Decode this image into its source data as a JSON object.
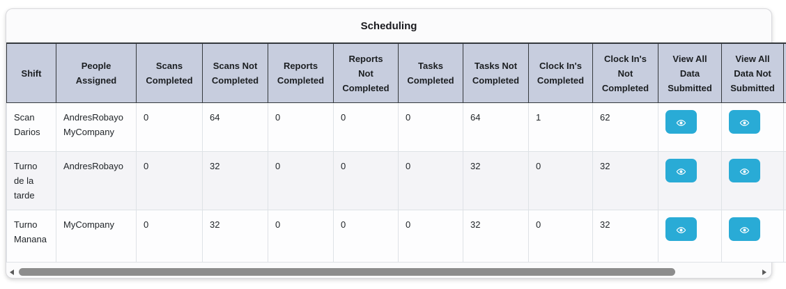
{
  "card": {
    "title": "Scheduling"
  },
  "table": {
    "columns": [
      {
        "key": "shift",
        "label": "Shift"
      },
      {
        "key": "people",
        "label": "People\nAssigned"
      },
      {
        "key": "scans_completed",
        "label": "Scans\nCompleted"
      },
      {
        "key": "scans_not_completed",
        "label": "Scans Not\nCompleted",
        "style": "danger"
      },
      {
        "key": "reports_completed",
        "label": "Reports\nCompleted"
      },
      {
        "key": "reports_not_completed",
        "label": "Reports\nNot\nCompleted",
        "style": "danger"
      },
      {
        "key": "tasks_completed",
        "label": "Tasks\nCompleted"
      },
      {
        "key": "tasks_not_completed",
        "label": "Tasks Not\nCompleted",
        "style": "danger"
      },
      {
        "key": "clockins_completed",
        "label": "Clock In's\nCompleted"
      },
      {
        "key": "clockins_not_completed",
        "label": "Clock In's\nNot\nCompleted",
        "style": "danger"
      },
      {
        "key": "view_all_submitted",
        "label": "View All\nData\nSubmitted",
        "type": "action",
        "icon": "eye-icon"
      },
      {
        "key": "view_all_not_submitted",
        "label": "View All\nData Not\nSubmitted",
        "type": "action",
        "icon": "eye-icon"
      }
    ],
    "rows": [
      {
        "shift": "Scan Darios",
        "people": [
          "AndresRobayo",
          "MyCompany"
        ],
        "scans_completed": "0",
        "scans_not_completed": "64",
        "reports_completed": "0",
        "reports_not_completed": "0",
        "tasks_completed": "0",
        "tasks_not_completed": "64",
        "clockins_completed": "1",
        "clockins_not_completed": "62"
      },
      {
        "shift": "Turno de la tarde",
        "people": [
          "AndresRobayo"
        ],
        "scans_completed": "0",
        "scans_not_completed": "32",
        "reports_completed": "0",
        "reports_not_completed": "0",
        "tasks_completed": "0",
        "tasks_not_completed": "32",
        "clockins_completed": "0",
        "clockins_not_completed": "32"
      },
      {
        "shift": "Turno Manana",
        "people": [
          "MyCompany"
        ],
        "scans_completed": "0",
        "scans_not_completed": "32",
        "reports_completed": "0",
        "reports_not_completed": "0",
        "tasks_completed": "0",
        "tasks_not_completed": "32",
        "clockins_completed": "0",
        "clockins_not_completed": "32"
      }
    ]
  },
  "colors": {
    "header_bg": "#c7cdde",
    "header_border": "#34383c",
    "body_border": "#dee2e6",
    "danger_text": "#fc2d40",
    "action_button_bg": "#29abd6",
    "scrollbar_thumb": "#8d8d8d"
  }
}
